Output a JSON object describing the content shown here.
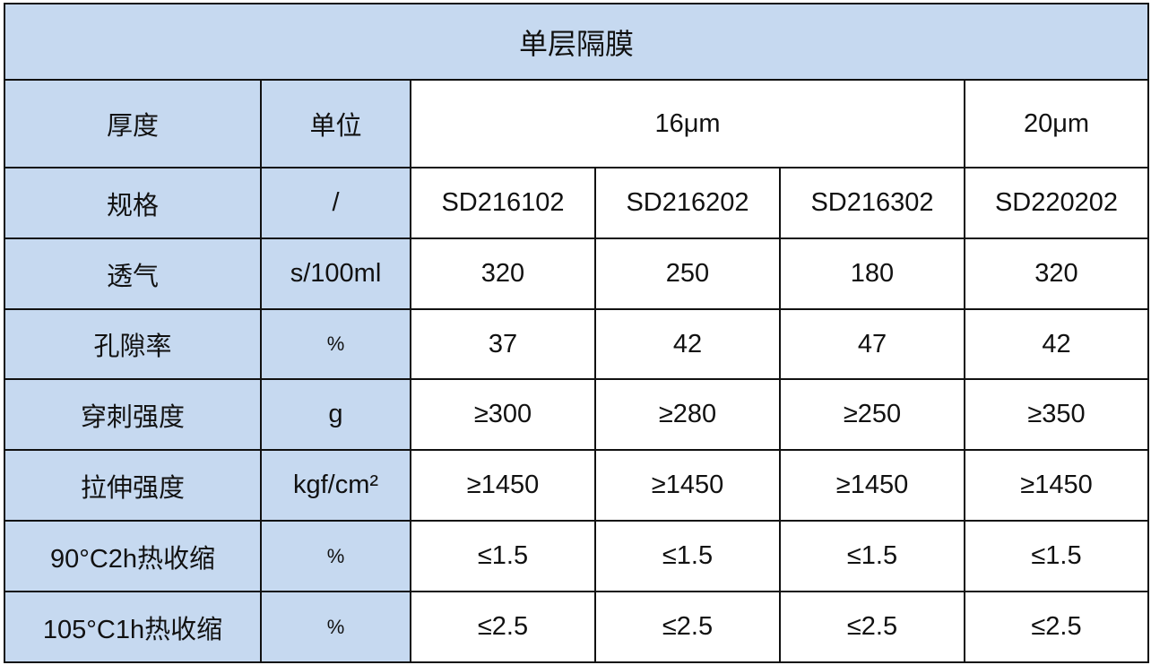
{
  "title": "单层隔膜",
  "header_bg": "#c6d9f0",
  "thickness_row": {
    "label": "厚度",
    "unit_label": "单位",
    "groups": [
      "16μm",
      "20μm"
    ]
  },
  "rows": [
    {
      "label": "规格",
      "unit": "/",
      "values": [
        "SD216102",
        "SD216202",
        "SD216302",
        "SD220202"
      ]
    },
    {
      "label": "透气",
      "unit": "s/100ml",
      "values": [
        "320",
        "250",
        "180",
        "320"
      ]
    },
    {
      "label": "孔隙率",
      "unit": "%",
      "values": [
        "37",
        "42",
        "47",
        "42"
      ]
    },
    {
      "label": "穿刺强度",
      "unit": "g",
      "values": [
        "≥300",
        "≥280",
        "≥250",
        "≥350"
      ]
    },
    {
      "label": "拉伸强度",
      "unit": "kgf/cm²",
      "values": [
        "≥1450",
        "≥1450",
        "≥1450",
        "≥1450"
      ]
    },
    {
      "label": "90°C2h热收缩",
      "unit": "%",
      "values": [
        "≤1.5",
        "≤1.5",
        "≤1.5",
        "≤1.5"
      ]
    },
    {
      "label": "105°C1h热收缩",
      "unit": "%",
      "values": [
        "≤2.5",
        "≤2.5",
        "≤2.5",
        "≤2.5"
      ]
    }
  ]
}
